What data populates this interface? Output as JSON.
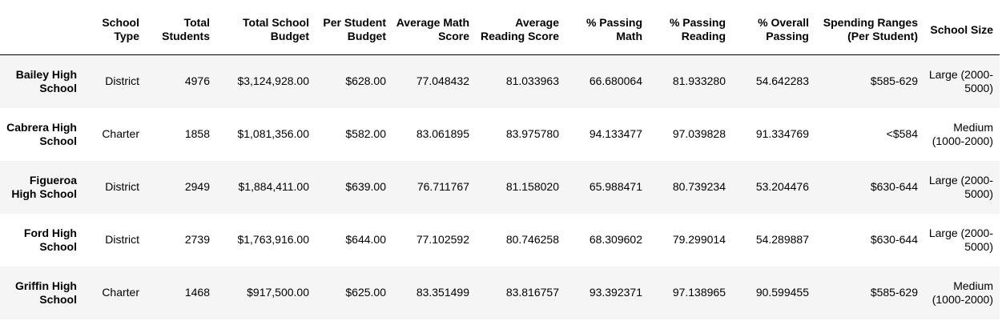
{
  "table": {
    "columns": [
      "",
      "School Type",
      "Total Students",
      "Total School Budget",
      "Per Student Budget",
      "Average Math Score",
      "Average Reading Score",
      "% Passing Math",
      "% Passing Reading",
      "% Overall Passing",
      "Spending Ranges (Per Student)",
      "School Size"
    ],
    "rows": [
      {
        "school": "Bailey High School",
        "type": "District",
        "total_students": "4976",
        "budget": "$3,124,928.00",
        "per_student": "$628.00",
        "avg_math": "77.048432",
        "avg_reading": "81.033963",
        "pct_math": "66.680064",
        "pct_reading": "81.933280",
        "pct_overall": "54.642283",
        "spending_range": "$585-629",
        "size": "Large (2000-5000)"
      },
      {
        "school": "Cabrera High School",
        "type": "Charter",
        "total_students": "1858",
        "budget": "$1,081,356.00",
        "per_student": "$582.00",
        "avg_math": "83.061895",
        "avg_reading": "83.975780",
        "pct_math": "94.133477",
        "pct_reading": "97.039828",
        "pct_overall": "91.334769",
        "spending_range": "<$584",
        "size": "Medium (1000-2000)"
      },
      {
        "school": "Figueroa High School",
        "type": "District",
        "total_students": "2949",
        "budget": "$1,884,411.00",
        "per_student": "$639.00",
        "avg_math": "76.711767",
        "avg_reading": "81.158020",
        "pct_math": "65.988471",
        "pct_reading": "80.739234",
        "pct_overall": "53.204476",
        "spending_range": "$630-644",
        "size": "Large (2000-5000)"
      },
      {
        "school": "Ford High School",
        "type": "District",
        "total_students": "2739",
        "budget": "$1,763,916.00",
        "per_student": "$644.00",
        "avg_math": "77.102592",
        "avg_reading": "80.746258",
        "pct_math": "68.309602",
        "pct_reading": "79.299014",
        "pct_overall": "54.289887",
        "spending_range": "$630-644",
        "size": "Large (2000-5000)"
      },
      {
        "school": "Griffin High School",
        "type": "Charter",
        "total_students": "1468",
        "budget": "$917,500.00",
        "per_student": "$625.00",
        "avg_math": "83.351499",
        "avg_reading": "83.816757",
        "pct_math": "93.392371",
        "pct_reading": "97.138965",
        "pct_overall": "90.599455",
        "spending_range": "$585-629",
        "size": "Medium (1000-2000)"
      }
    ]
  },
  "colors": {
    "stripe": "#f5f5f5",
    "header_rule": "#000000",
    "text": "#000000"
  }
}
